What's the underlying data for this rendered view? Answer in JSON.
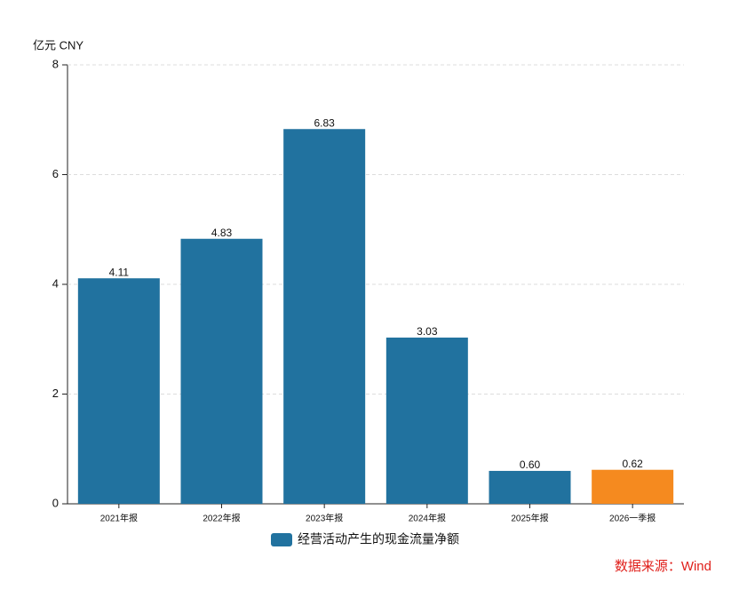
{
  "chart_data": {
    "type": "bar",
    "unit_label": "亿元  CNY",
    "categories": [
      "2021年报",
      "2022年报",
      "2023年报",
      "2024年报",
      "2025年报",
      "2026一季报"
    ],
    "series": [
      {
        "name": "经营活动产生的现金流量净额",
        "color": "#21729f",
        "colors": [
          "#21729f",
          "#21729f",
          "#21729f",
          "#21729f",
          "#21729f",
          "#f58a1f"
        ],
        "values": [
          4.11,
          4.83,
          6.83,
          3.03,
          0.6,
          0.62
        ],
        "value_labels": [
          "4.11",
          "4.83",
          "6.83",
          "3.03",
          "0.60",
          "0.62"
        ]
      }
    ],
    "ylim": [
      0,
      8
    ],
    "yticks": [
      0,
      2,
      4,
      6,
      8
    ],
    "grid": true,
    "source": "数据来源：Wind"
  }
}
